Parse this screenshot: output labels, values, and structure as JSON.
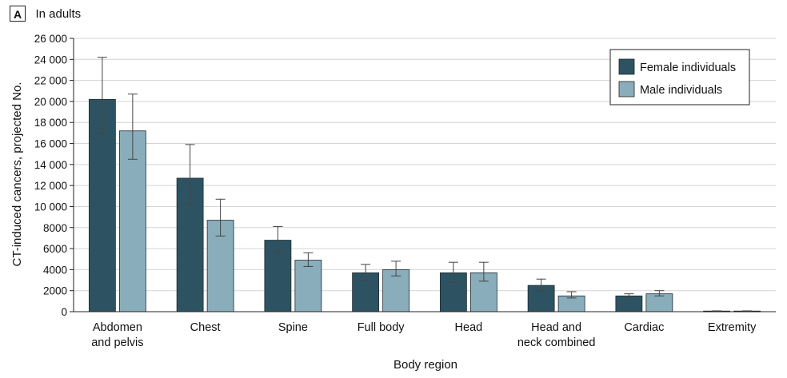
{
  "panel": {
    "letter": "A",
    "title": "In adults"
  },
  "chart_data": {
    "type": "bar",
    "categories": [
      [
        "Abdomen",
        "and pelvis"
      ],
      [
        "Chest"
      ],
      [
        "Spine"
      ],
      [
        "Full body"
      ],
      [
        "Head"
      ],
      [
        "Head and",
        "neck combined"
      ],
      [
        "Cardiac"
      ],
      [
        "Extremity"
      ]
    ],
    "series": [
      {
        "name": "Female individuals",
        "color": "#2d5362",
        "values": [
          20200,
          12700,
          6800,
          3700,
          3700,
          2500,
          1500,
          60
        ],
        "error_low": [
          16900,
          10200,
          5600,
          3000,
          2800,
          2000,
          1300,
          40
        ],
        "error_high": [
          24200,
          15900,
          8100,
          4500,
          4700,
          3100,
          1700,
          80
        ]
      },
      {
        "name": "Male individuals",
        "color": "#89adbb",
        "values": [
          17200,
          8700,
          4900,
          4000,
          3700,
          1500,
          1700,
          60
        ],
        "error_low": [
          14500,
          7200,
          4300,
          3400,
          2900,
          1300,
          1500,
          40
        ],
        "error_high": [
          20700,
          10700,
          5600,
          4800,
          4700,
          1900,
          2000,
          80
        ]
      }
    ],
    "xlabel": "Body region",
    "ylabel": "CT-induced cancers, projected No.",
    "ylim": [
      0,
      26000
    ],
    "yticks": [
      0,
      2000,
      4000,
      6000,
      8000,
      10000,
      12000,
      14000,
      16000,
      18000,
      20000,
      22000,
      24000,
      26000
    ],
    "ytick_labels": [
      "0",
      "2000",
      "4000",
      "6000",
      "8000",
      "10 000",
      "12 000",
      "14 000",
      "16 000",
      "18 000",
      "20 000",
      "22 000",
      "24 000",
      "26 000"
    ],
    "grid": true,
    "legend_position": "top-right"
  }
}
